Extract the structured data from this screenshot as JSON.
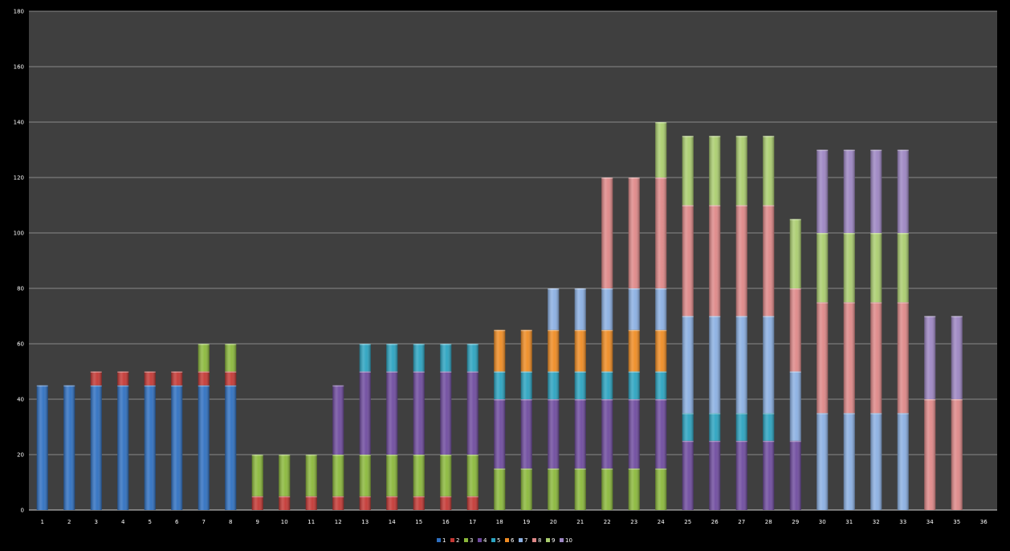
{
  "chart_data": {
    "type": "bar",
    "stacked": true,
    "title": "",
    "xlabel": "",
    "ylabel": "",
    "ylim": [
      0,
      180
    ],
    "yticks": [
      0,
      20,
      40,
      60,
      80,
      100,
      120,
      140,
      160,
      180
    ],
    "grid": true,
    "legend_position": "bottom",
    "background_color": "#3f3f3f",
    "categories": [
      "1",
      "2",
      "3",
      "4",
      "5",
      "6",
      "7",
      "8",
      "9",
      "10",
      "11",
      "12",
      "13",
      "14",
      "15",
      "16",
      "17",
      "18",
      "19",
      "20",
      "21",
      "22",
      "23",
      "24",
      "25",
      "26",
      "27",
      "28",
      "29",
      "30",
      "31",
      "32",
      "33",
      "34",
      "35",
      "36"
    ],
    "series": [
      {
        "name": "1",
        "color": "#2e6fc0",
        "values": [
          45,
          45,
          45,
          45,
          45,
          45,
          45,
          45,
          0,
          0,
          0,
          0,
          0,
          0,
          0,
          0,
          0,
          0,
          0,
          0,
          0,
          0,
          0,
          0,
          0,
          0,
          0,
          0,
          0,
          0,
          0,
          0,
          0,
          0,
          0,
          0
        ]
      },
      {
        "name": "2",
        "color": "#c43733",
        "values": [
          0,
          0,
          5,
          5,
          5,
          5,
          5,
          5,
          5,
          5,
          5,
          5,
          5,
          5,
          5,
          5,
          5,
          0,
          0,
          0,
          0,
          0,
          0,
          0,
          0,
          0,
          0,
          0,
          0,
          0,
          0,
          0,
          0,
          0,
          0,
          0
        ]
      },
      {
        "name": "3",
        "color": "#8ab83a",
        "values": [
          0,
          0,
          0,
          0,
          0,
          0,
          10,
          10,
          15,
          15,
          15,
          15,
          15,
          15,
          15,
          15,
          15,
          15,
          15,
          15,
          15,
          15,
          15,
          15,
          0,
          0,
          0,
          0,
          0,
          0,
          0,
          0,
          0,
          0,
          0,
          0
        ]
      },
      {
        "name": "4",
        "color": "#6e4a9e",
        "values": [
          0,
          0,
          0,
          0,
          0,
          0,
          0,
          0,
          0,
          0,
          0,
          25,
          30,
          30,
          30,
          30,
          30,
          25,
          25,
          25,
          25,
          25,
          25,
          25,
          25,
          25,
          25,
          25,
          25,
          0,
          0,
          0,
          0,
          0,
          0,
          0
        ]
      },
      {
        "name": "5",
        "color": "#2aa3c0",
        "values": [
          0,
          0,
          0,
          0,
          0,
          0,
          0,
          0,
          0,
          0,
          0,
          0,
          10,
          10,
          10,
          10,
          10,
          10,
          10,
          10,
          10,
          10,
          10,
          10,
          10,
          10,
          10,
          10,
          0,
          0,
          0,
          0,
          0,
          0,
          0,
          0
        ]
      },
      {
        "name": "6",
        "color": "#ef8b22",
        "values": [
          0,
          0,
          0,
          0,
          0,
          0,
          0,
          0,
          0,
          0,
          0,
          0,
          0,
          0,
          0,
          0,
          0,
          15,
          15,
          15,
          15,
          15,
          15,
          15,
          0,
          0,
          0,
          0,
          0,
          0,
          0,
          0,
          0,
          0,
          0,
          0
        ]
      },
      {
        "name": "7",
        "color": "#8aafe2",
        "values": [
          0,
          0,
          0,
          0,
          0,
          0,
          0,
          0,
          0,
          0,
          0,
          0,
          0,
          0,
          0,
          0,
          0,
          0,
          0,
          15,
          15,
          15,
          15,
          15,
          35,
          35,
          35,
          35,
          25,
          35,
          35,
          35,
          35,
          0,
          0,
          0
        ]
      },
      {
        "name": "8",
        "color": "#de8787",
        "values": [
          0,
          0,
          0,
          0,
          0,
          0,
          0,
          0,
          0,
          0,
          0,
          0,
          0,
          0,
          0,
          0,
          0,
          0,
          0,
          0,
          0,
          40,
          40,
          40,
          40,
          40,
          40,
          40,
          30,
          40,
          40,
          40,
          40,
          40,
          40,
          0
        ]
      },
      {
        "name": "9",
        "color": "#aacd6e",
        "values": [
          0,
          0,
          0,
          0,
          0,
          0,
          0,
          0,
          0,
          0,
          0,
          0,
          0,
          0,
          0,
          0,
          0,
          0,
          0,
          0,
          0,
          0,
          0,
          20,
          25,
          25,
          25,
          25,
          25,
          25,
          25,
          25,
          25,
          0,
          0,
          0
        ]
      },
      {
        "name": "10",
        "color": "#9c85c2",
        "values": [
          0,
          0,
          0,
          0,
          0,
          0,
          0,
          0,
          0,
          0,
          0,
          0,
          0,
          0,
          0,
          0,
          0,
          0,
          0,
          0,
          0,
          0,
          0,
          0,
          0,
          0,
          0,
          0,
          0,
          30,
          30,
          30,
          30,
          30,
          30,
          0
        ]
      }
    ]
  }
}
